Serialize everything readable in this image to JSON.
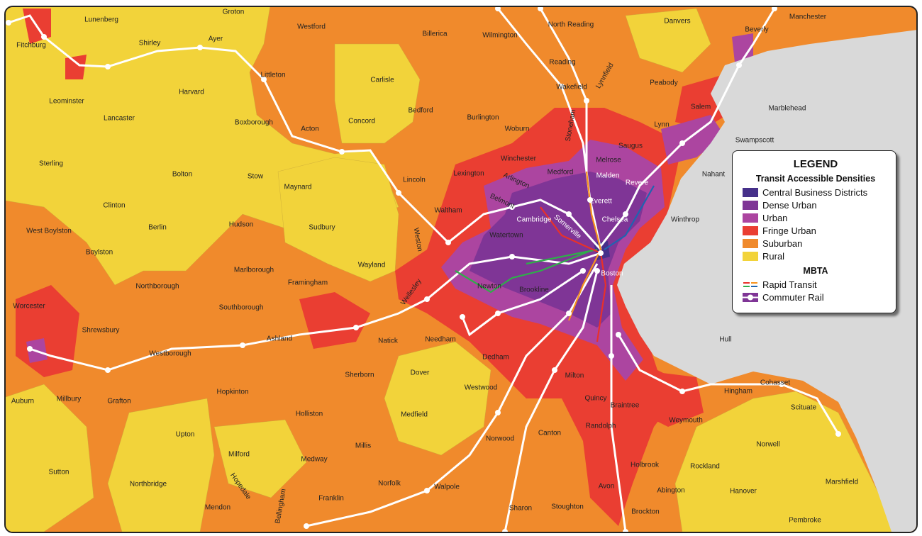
{
  "legend": {
    "title": "LEGEND",
    "densities_heading": "Transit Accessible Densities",
    "densities": [
      {
        "label": "Central Business Districts",
        "color": "#46308a"
      },
      {
        "label": "Dense Urban",
        "color": "#7f3596"
      },
      {
        "label": "Urban",
        "color": "#ac45a0"
      },
      {
        "label": "Fringe Urban",
        "color": "#ea3e32"
      },
      {
        "label": "Suburban",
        "color": "#f08a2c"
      },
      {
        "label": "Rural",
        "color": "#f2d33a"
      }
    ],
    "mbta_heading": "MBTA",
    "mbta": [
      {
        "label": "Rapid Transit",
        "icon": "rapid-transit-icon",
        "colors": [
          "#e8312a",
          "#f7931d",
          "#2fae4a",
          "#1f64b0"
        ]
      },
      {
        "label": "Commuter Rail",
        "icon": "commuter-rail-icon",
        "colors": [
          "#7f3596",
          "#ffffff"
        ]
      }
    ]
  },
  "colors": {
    "water": "#d9d9d9",
    "rail": "#ffffff"
  },
  "towns": [
    "Groton",
    "Lunenberg",
    "Westford",
    "Billerica",
    "Wilmington",
    "North Reading",
    "Danvers",
    "Manchester",
    "Fitchburg",
    "Shirley",
    "Ayer",
    "Beverly",
    "Littleton",
    "Reading",
    "Lynnfield",
    "Peabody",
    "Leominster",
    "Harvard",
    "Carlisle",
    "Wakefield",
    "Marblehead",
    "Salem",
    "Lancaster",
    "Boxborough",
    "Acton",
    "Concord",
    "Bedford",
    "Burlington",
    "Woburn",
    "Stoneham",
    "Saugus",
    "Lynn",
    "Swampscott",
    "Sterling",
    "Bolton",
    "Stow",
    "Maynard",
    "Lincoln",
    "Lexington",
    "Winchester",
    "Medford",
    "Melrose",
    "Malden",
    "Nahant",
    "Arlington",
    "Revere",
    "Clinton",
    "Everett",
    "Belmont",
    "Winthrop",
    "Chelsea",
    "Berlin",
    "Hudson",
    "Sudbury",
    "Waltham",
    "Cambridge",
    "Somerville",
    "West Boylston",
    "Weston",
    "Watertown",
    "Boylston",
    "Marlborough",
    "Wayland",
    "Boston",
    "Framingham",
    "Northborough",
    "Newton",
    "Brookline",
    "Wellesley",
    "Worcester",
    "Southborough",
    "Shrewsbury",
    "Ashland",
    "Natick",
    "Needham",
    "Hull",
    "Westborough",
    "Dedham",
    "Sherborn",
    "Dover",
    "Milton",
    "Hingham",
    "Cohasset",
    "Auburn",
    "Millbury",
    "Grafton",
    "Hopkinton",
    "Westwood",
    "Quincy",
    "Braintree",
    "Scituate",
    "Holliston",
    "Medfield",
    "Weymouth",
    "Upton",
    "Canton",
    "Randolph",
    "Norwood",
    "Millis",
    "Norwell",
    "Milford",
    "Medway",
    "Holbrook",
    "Rockland",
    "Sutton",
    "Hopedale",
    "Northbridge",
    "Norfolk",
    "Walpole",
    "Franklin",
    "Avon",
    "Abington",
    "Hanover",
    "Marshfield",
    "Bellingham",
    "Mendon",
    "Sharon",
    "Stoughton",
    "Brockton",
    "Pembroke"
  ]
}
